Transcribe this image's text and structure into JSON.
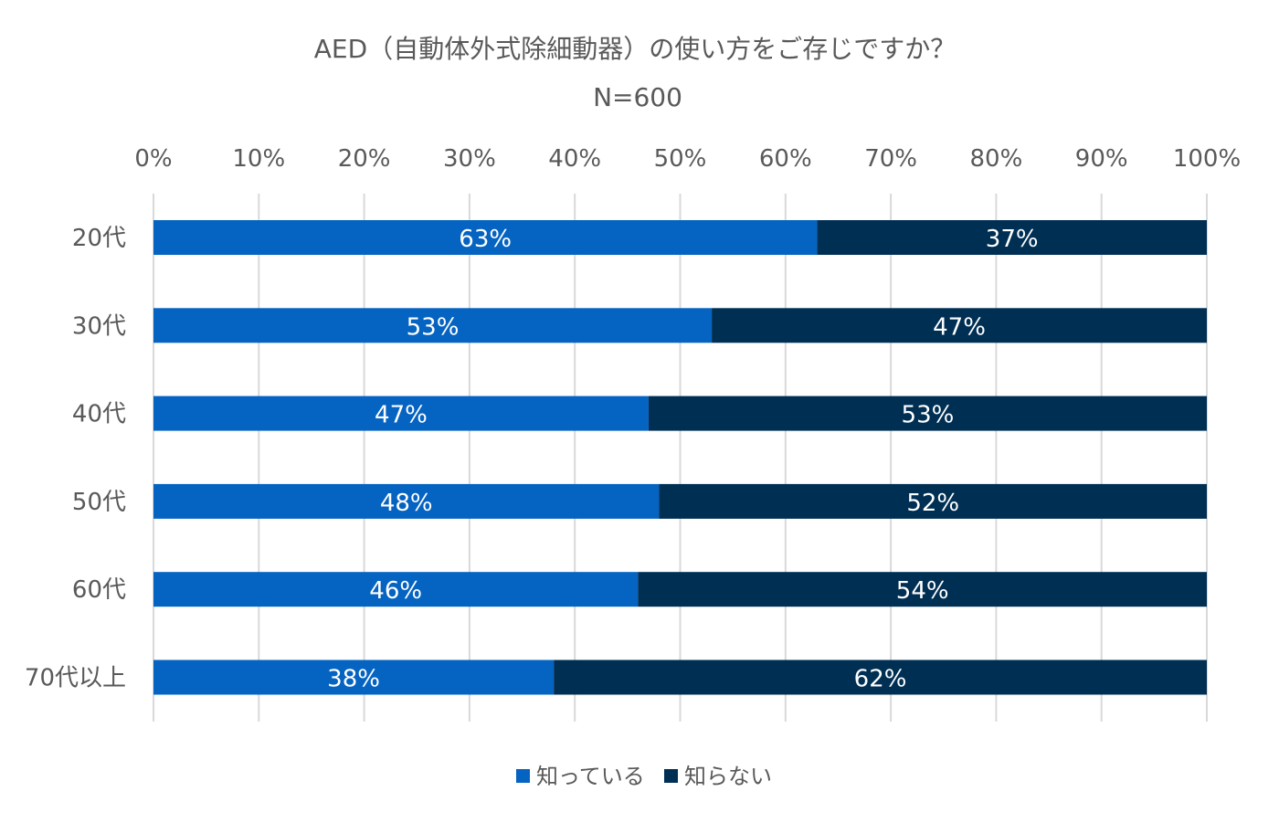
{
  "chart_data": {
    "type": "bar",
    "orientation": "horizontal",
    "stacked": true,
    "title": "AED（自動体外式除細動器）の使い方をご存じですか？",
    "subtitle": "N=600",
    "categories": [
      "20代",
      "30代",
      "40代",
      "50代",
      "60代",
      "70代以上"
    ],
    "series": [
      {
        "name": "知っている",
        "color": "#0563c1",
        "values": [
          63,
          53,
          47,
          48,
          46,
          38
        ],
        "labels": [
          "63%",
          "53%",
          "47%",
          "48%",
          "46%",
          "38%"
        ]
      },
      {
        "name": "知らない",
        "color": "#002f54",
        "values": [
          37,
          47,
          53,
          52,
          54,
          62
        ],
        "labels": [
          "37%",
          "47%",
          "53%",
          "52%",
          "54%",
          "62%"
        ]
      }
    ],
    "xlim": [
      0,
      100
    ],
    "xticks": [
      "0%",
      "10%",
      "20%",
      "30%",
      "40%",
      "50%",
      "60%",
      "70%",
      "80%",
      "90%",
      "100%"
    ],
    "x_axis_position": "top",
    "grid": true,
    "legend_position": "bottom"
  }
}
